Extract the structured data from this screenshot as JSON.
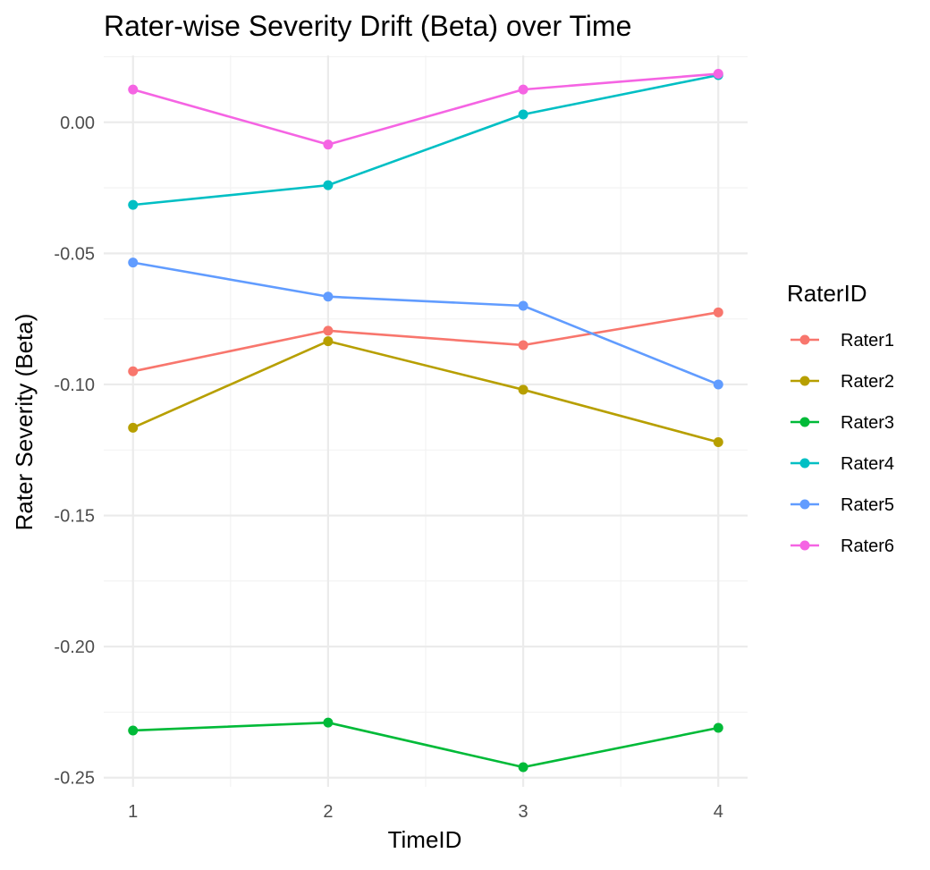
{
  "chart_data": {
    "type": "line",
    "title": "Rater-wise Severity Drift (Beta) over Time",
    "xlabel": "TimeID",
    "ylabel": "Rater Severity (Beta)",
    "x": [
      1,
      2,
      3,
      4
    ],
    "x_ticks": [
      1,
      2,
      3,
      4
    ],
    "x_tick_labels": [
      "1",
      "2",
      "3",
      "4"
    ],
    "xlim": [
      0.85,
      4.15
    ],
    "y_ticks": [
      0.0,
      -0.05,
      -0.1,
      -0.15,
      -0.2,
      -0.25
    ],
    "y_tick_labels": [
      "0.00",
      "-0.05",
      "-0.10",
      "-0.15",
      "-0.20",
      "-0.25"
    ],
    "ylim": [
      -0.2535,
      0.0255
    ],
    "grid": true,
    "legend_title": "RaterID",
    "legend_position": "right",
    "series": [
      {
        "name": "Rater1",
        "color": "#F8766D",
        "values": [
          -0.095,
          -0.0795,
          -0.085,
          -0.0725
        ]
      },
      {
        "name": "Rater2",
        "color": "#B79F00",
        "values": [
          -0.1165,
          -0.0835,
          -0.102,
          -0.122
        ]
      },
      {
        "name": "Rater3",
        "color": "#00BA38",
        "values": [
          -0.232,
          -0.229,
          -0.246,
          -0.231
        ]
      },
      {
        "name": "Rater4",
        "color": "#00BFC4",
        "values": [
          -0.0315,
          -0.024,
          0.003,
          0.018
        ]
      },
      {
        "name": "Rater5",
        "color": "#619CFF",
        "values": [
          -0.0535,
          -0.0665,
          -0.07,
          -0.1
        ]
      },
      {
        "name": "Rater6",
        "color": "#F564E3",
        "values": [
          0.0125,
          -0.0085,
          0.0125,
          0.0185
        ]
      }
    ]
  }
}
